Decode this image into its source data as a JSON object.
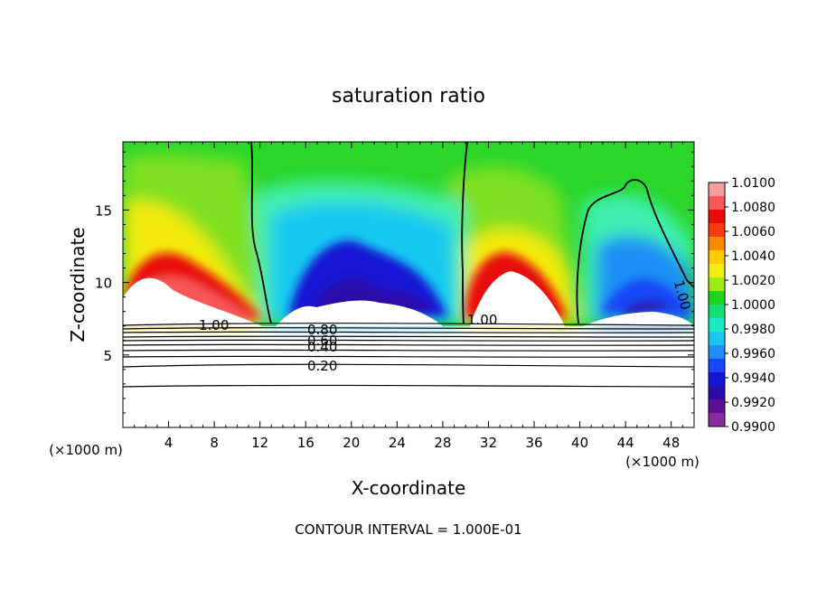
{
  "chart_data": {
    "type": "heatmap",
    "title": "saturation ratio",
    "xlabel": "X-coordinate",
    "ylabel": "Z-coordinate",
    "x_unit_left": "(×1000 m)",
    "x_unit_right": "(×1000 m)",
    "xlim": [
      0,
      50
    ],
    "ylim": [
      0,
      19.7
    ],
    "xticks": [
      "4",
      "8",
      "12",
      "16",
      "20",
      "24",
      "28",
      "32",
      "36",
      "40",
      "44",
      "48"
    ],
    "yticks": [
      "5",
      "10",
      "15"
    ],
    "colorbar": {
      "levels": [
        "1.0100",
        "1.0080",
        "1.0060",
        "1.0040",
        "1.0020",
        "1.0000",
        "0.9980",
        "0.9960",
        "0.9940",
        "0.9920",
        "0.9900"
      ],
      "colors": [
        "#f4a0a0",
        "#f85858",
        "#e80a0a",
        "#f53c0a",
        "#fc8800",
        "#fdca00",
        "#f2ee10",
        "#9eea16",
        "#1ed41e",
        "#14e07a",
        "#19e9c4",
        "#19c8f0",
        "#1f8ef5",
        "#1846f5",
        "#1414d4",
        "#2b0ba8",
        "#5d0f92",
        "#8a2a9e"
      ]
    },
    "contour_labels": [
      "1.00",
      "0.80",
      "0.60",
      "0.40",
      "0.20",
      "1.00",
      "1.00",
      "1.00"
    ],
    "footer": "CONTOUR INTERVAL = 1.000E-01"
  }
}
